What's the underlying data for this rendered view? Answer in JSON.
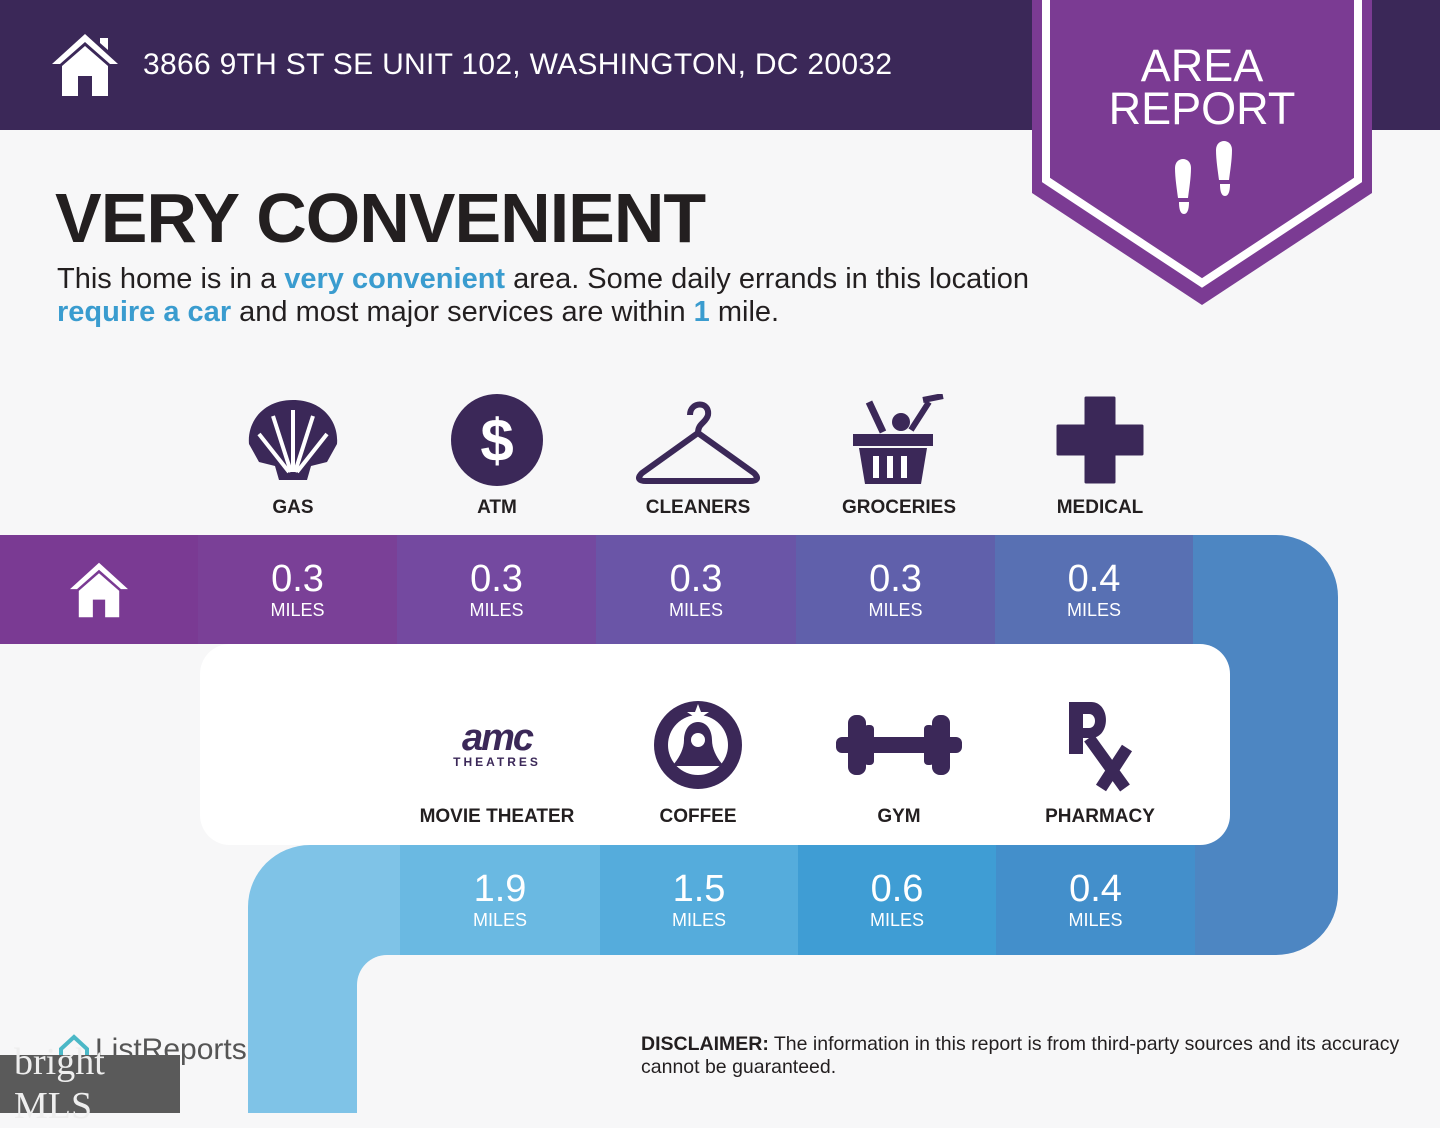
{
  "header": {
    "address": "3866 9TH ST SE UNIT 102, WASHINGTON, DC 20032",
    "icon": "house-icon"
  },
  "badge": {
    "line1": "AREA",
    "line2": "REPORT",
    "icon": "footprints-icon",
    "color": "#7b3b93"
  },
  "headline": "VERY CONVENIENT",
  "description": {
    "p1": "This home is in a ",
    "h1": "very convenient",
    "p2": " area. Some daily errands in this location ",
    "h2": "require a car",
    "p3": " and most major services are within ",
    "h3": "1",
    "p4": " mile."
  },
  "unit": "MILES",
  "row1": [
    {
      "label": "GAS",
      "value": "0.3",
      "icon": "shell-icon"
    },
    {
      "label": "ATM",
      "value": "0.3",
      "icon": "dollar-icon"
    },
    {
      "label": "CLEANERS",
      "value": "0.3",
      "icon": "hanger-icon"
    },
    {
      "label": "GROCERIES",
      "value": "0.3",
      "icon": "basket-icon"
    },
    {
      "label": "MEDICAL",
      "value": "0.4",
      "icon": "cross-icon"
    }
  ],
  "row2": [
    {
      "label": "MOVIE THEATER",
      "value": "1.9",
      "icon": "amc-logo-icon",
      "logo_text": "amc",
      "logo_sub": "THEATRES"
    },
    {
      "label": "COFFEE",
      "value": "1.5",
      "icon": "starbucks-icon"
    },
    {
      "label": "GYM",
      "value": "0.6",
      "icon": "dumbbell-icon"
    },
    {
      "label": "PHARMACY",
      "value": "0.4",
      "icon": "rx-icon"
    }
  ],
  "footer": {
    "brand": "ListReports",
    "watermark": "bright MLS",
    "disclaimer_bold": "DISCLAIMER:",
    "disclaimer": " The information in this report is from third-party sources and its accuracy cannot be guaranteed."
  },
  "colors": {
    "header": "#3b2858",
    "accent": "#3a9ccf",
    "icon": "#3b2858"
  }
}
